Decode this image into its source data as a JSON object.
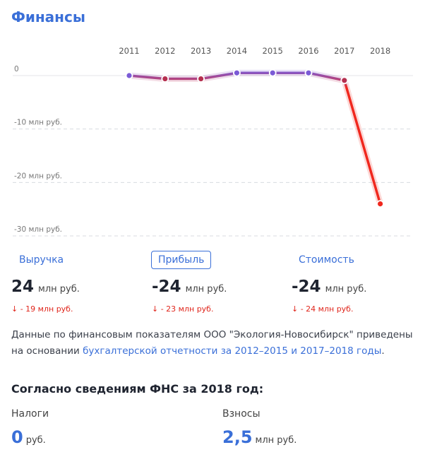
{
  "title": "Финансы",
  "chart_data": {
    "type": "line",
    "categories": [
      "2011",
      "2012",
      "2013",
      "2014",
      "2015",
      "2016",
      "2017",
      "2018"
    ],
    "values": [
      0,
      -0.6,
      -0.6,
      0.5,
      0.5,
      0.5,
      -0.9,
      -24
    ],
    "ylim": [
      -30,
      3
    ],
    "yticks": [
      0,
      {
        "value": -10,
        "label": "-10 млн руб."
      },
      {
        "value": -20,
        "label": "-20 млн руб."
      },
      {
        "value": -30,
        "label": "-30 млн руб."
      }
    ],
    "grid": true,
    "color_positive": "#7b5bd6",
    "color_negative": "#f0281e"
  },
  "metrics": [
    {
      "label": "Выручка",
      "value": 24,
      "unit": "млн руб.",
      "change": "↓ - 19 млн руб."
    },
    {
      "label": "Прибыль",
      "value": -24,
      "unit": "млн руб.",
      "change": "↓ - 23 млн руб."
    },
    {
      "label": "Стоимость",
      "value": -24,
      "unit": "млн руб.",
      "change": "↓ - 24 млн руб."
    }
  ],
  "note": {
    "text": "Данные по финансовым показателям ООО \"Экология-Новосибирск\" приведены на основании ",
    "link": "бухгалтерской отчетности за 2012–2015 и 2017–2018 годы",
    "end": "."
  },
  "fns": {
    "heading": "Согласно сведениям ФНС за 2018 год:",
    "items": [
      {
        "label": "Налоги",
        "value": 0,
        "unit": "руб."
      },
      {
        "label": "Взносы",
        "value": "2,5",
        "unit": "млн руб."
      }
    ]
  }
}
